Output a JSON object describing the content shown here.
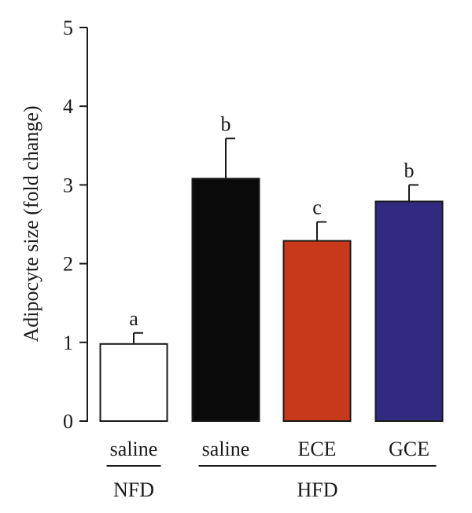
{
  "chart_data": {
    "type": "bar",
    "ylabel": "Adipocyte size (fold change)",
    "xlabel": "",
    "ylim": [
      0,
      5
    ],
    "yticks": [
      0,
      1,
      2,
      3,
      4,
      5
    ],
    "grid": false,
    "categories": [
      "saline",
      "saline",
      "ECE",
      "GCE"
    ],
    "groups": [
      {
        "label": "NFD",
        "categories": [
          0
        ]
      },
      {
        "label": "HFD",
        "categories": [
          1,
          2,
          3
        ]
      }
    ],
    "values": [
      0.98,
      3.08,
      2.29,
      2.79
    ],
    "errors": [
      0.14,
      0.51,
      0.24,
      0.21
    ],
    "significance": [
      "a",
      "b",
      "c",
      "b"
    ],
    "colors": [
      "#ffffff",
      "#0a0a0a",
      "#c8391c",
      "#312a80"
    ]
  }
}
